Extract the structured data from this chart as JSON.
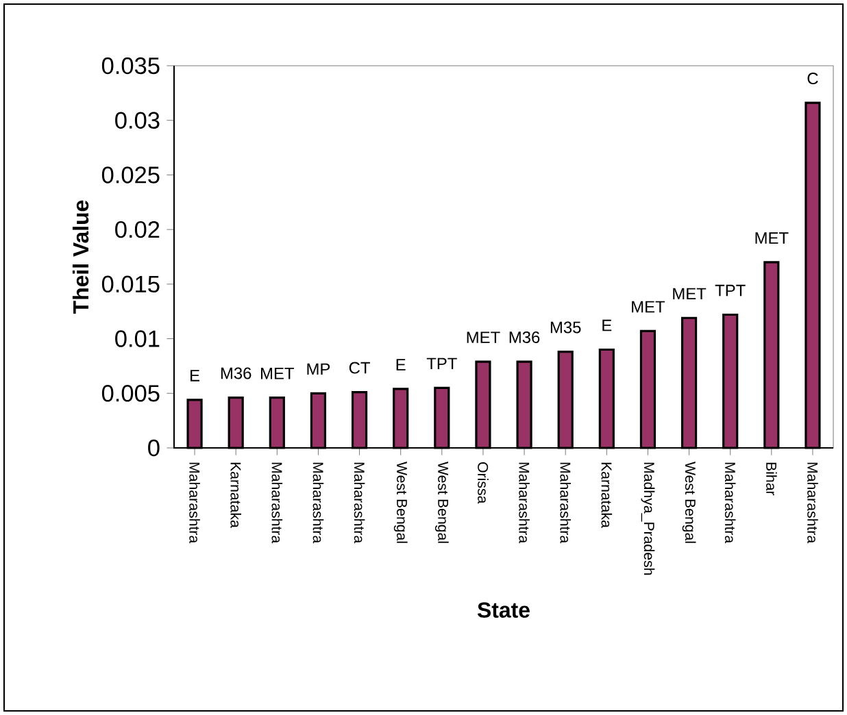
{
  "chart_data": {
    "type": "bar",
    "xlabel": "State",
    "ylabel": "Theil Value",
    "categories": [
      "Maharashtra",
      "Karnataka",
      "Maharashtra",
      "Maharashtra",
      "Maharashtra",
      "West Bengal",
      "West Bengal",
      "Orissa",
      "Maharashtra",
      "Maharashtra",
      "Karnataka",
      "Madhya_Pradesh",
      "West Bengal",
      "Maharashtra",
      "Bihar",
      "Maharashtra"
    ],
    "values": [
      0.0044,
      0.0046,
      0.0046,
      0.005,
      0.0051,
      0.0054,
      0.0055,
      0.0079,
      0.0079,
      0.0088,
      0.009,
      0.0107,
      0.0119,
      0.0122,
      0.017,
      0.0316
    ],
    "value_labels": [
      "E",
      "M36",
      "MET",
      "MP",
      "CT",
      "E",
      "TPT",
      "MET",
      "M36",
      "M35",
      "E",
      "MET",
      "MET",
      "TPT",
      "MET",
      "C"
    ],
    "color": "#993366",
    "ylim": [
      0,
      0.035
    ],
    "yticks": [
      0,
      0.005,
      0.01,
      0.015,
      0.02,
      0.025,
      0.03,
      0.035
    ],
    "grid": false
  }
}
